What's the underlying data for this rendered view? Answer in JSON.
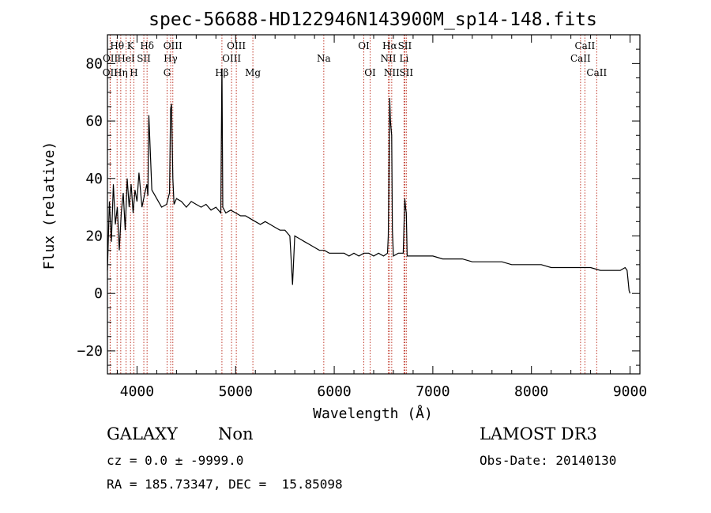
{
  "chart_data": {
    "type": "line",
    "title": "spec-56688-HD122946N143900M_sp14-148.fits",
    "xlabel": "Wavelength (Å)",
    "ylabel": "Flux (relative)",
    "xlim": [
      3700,
      9100
    ],
    "ylim": [
      -28,
      90
    ],
    "xticks": [
      4000,
      5000,
      6000,
      7000,
      8000,
      9000
    ],
    "yticks": [
      -20,
      0,
      20,
      40,
      60,
      80
    ],
    "grid": false,
    "line_color": "#000000",
    "marker_color": "#c0392b",
    "series": [
      {
        "x": [
          3700,
          3720,
          3740,
          3760,
          3780,
          3800,
          3820,
          3840,
          3860,
          3880,
          3900,
          3920,
          3940,
          3960,
          3980,
          4000,
          4020,
          4050,
          4080,
          4100,
          4110,
          4120,
          4150,
          4200,
          4250,
          4300,
          4330,
          4340,
          4350,
          4363,
          4375,
          4400,
          4450,
          4500,
          4550,
          4600,
          4650,
          4700,
          4750,
          4800,
          4850,
          4860,
          4862,
          4870,
          4900,
          4950,
          5000,
          5050,
          5100,
          5150,
          5200,
          5250,
          5300,
          5350,
          5400,
          5450,
          5500,
          5550,
          5577,
          5600,
          5650,
          5700,
          5750,
          5800,
          5850,
          5900,
          5950,
          6000,
          6050,
          6100,
          6150,
          6200,
          6250,
          6300,
          6350,
          6400,
          6450,
          6500,
          6540,
          6548,
          6555,
          6563,
          6570,
          6583,
          6590,
          6600,
          6650,
          6700,
          6716,
          6723,
          6731,
          6740,
          6800,
          6900,
          7000,
          7100,
          7200,
          7300,
          7400,
          7500,
          7600,
          7700,
          7800,
          7900,
          8000,
          8100,
          8200,
          8300,
          8400,
          8500,
          8600,
          8700,
          8800,
          8900,
          8950,
          8970,
          8990,
          9000
        ],
        "y": [
          8,
          32,
          18,
          38,
          24,
          30,
          15,
          28,
          35,
          22,
          40,
          30,
          38,
          28,
          36,
          32,
          42,
          30,
          35,
          38,
          34,
          62,
          36,
          33,
          30,
          31,
          35,
          64,
          66,
          40,
          31,
          33,
          32,
          30,
          32,
          31,
          30,
          31,
          29,
          30,
          28,
          76,
          78,
          30,
          28,
          29,
          28,
          27,
          27,
          26,
          25,
          24,
          25,
          24,
          23,
          22,
          22,
          20,
          3,
          20,
          19,
          18,
          17,
          16,
          15,
          15,
          14,
          14,
          14,
          14,
          13,
          14,
          13,
          14,
          14,
          13,
          14,
          13,
          14,
          20,
          40,
          68,
          60,
          55,
          22,
          13,
          14,
          14,
          33,
          30,
          28,
          13,
          13,
          13,
          13,
          12,
          12,
          12,
          11,
          11,
          11,
          11,
          10,
          10,
          10,
          10,
          9,
          9,
          9,
          9,
          9,
          8,
          8,
          8,
          9,
          8,
          1,
          0
        ]
      }
    ],
    "lines": [
      {
        "name": "OII",
        "x": 3727,
        "row": 3
      },
      {
        "name": "OII",
        "x": 3729,
        "row": 2
      },
      {
        "name": "Hθ",
        "x": 3798,
        "row": 1
      },
      {
        "name": "Hη",
        "x": 3835,
        "row": 3
      },
      {
        "name": "HeI",
        "x": 3889,
        "row": 2
      },
      {
        "name": "K",
        "x": 3934,
        "row": 1
      },
      {
        "name": "H",
        "x": 3968,
        "row": 3
      },
      {
        "name": "SII",
        "x": 4069,
        "row": 2
      },
      {
        "name": "Hδ",
        "x": 4102,
        "row": 1
      },
      {
        "name": "OIII",
        "x": 4363,
        "row": 1
      },
      {
        "name": "Hγ",
        "x": 4341,
        "row": 2
      },
      {
        "name": "G",
        "x": 4305,
        "row": 3
      },
      {
        "name": "Hβ",
        "x": 4861,
        "row": 3
      },
      {
        "name": "OIII",
        "x": 4959,
        "row": 2
      },
      {
        "name": "OIII",
        "x": 5007,
        "row": 1
      },
      {
        "name": "Mg",
        "x": 5175,
        "row": 3
      },
      {
        "name": "Na",
        "x": 5894,
        "row": 2
      },
      {
        "name": "OI",
        "x": 6300,
        "row": 1
      },
      {
        "name": "OI",
        "x": 6364,
        "row": 3
      },
      {
        "name": "NII",
        "x": 6548,
        "row": 2
      },
      {
        "name": "Hα",
        "x": 6563,
        "row": 1
      },
      {
        "name": "NII",
        "x": 6583,
        "row": 3
      },
      {
        "name": "Li",
        "x": 6708,
        "row": 2
      },
      {
        "name": "SII",
        "x": 6716,
        "row": 1
      },
      {
        "name": "SII",
        "x": 6731,
        "row": 3
      },
      {
        "name": "CaII",
        "x": 8498,
        "row": 2
      },
      {
        "name": "CaII",
        "x": 8542,
        "row": 1
      },
      {
        "name": "CaII",
        "x": 8662,
        "row": 3
      }
    ]
  },
  "info": {
    "class_label": "GALAXY",
    "subclass": "Non",
    "survey": "LAMOST DR3",
    "cz": "cz = 0.0 ± -9999.0",
    "obs_date": "Obs-Date: 20140130",
    "coords": "RA = 185.73347, DEC =  15.85098"
  }
}
